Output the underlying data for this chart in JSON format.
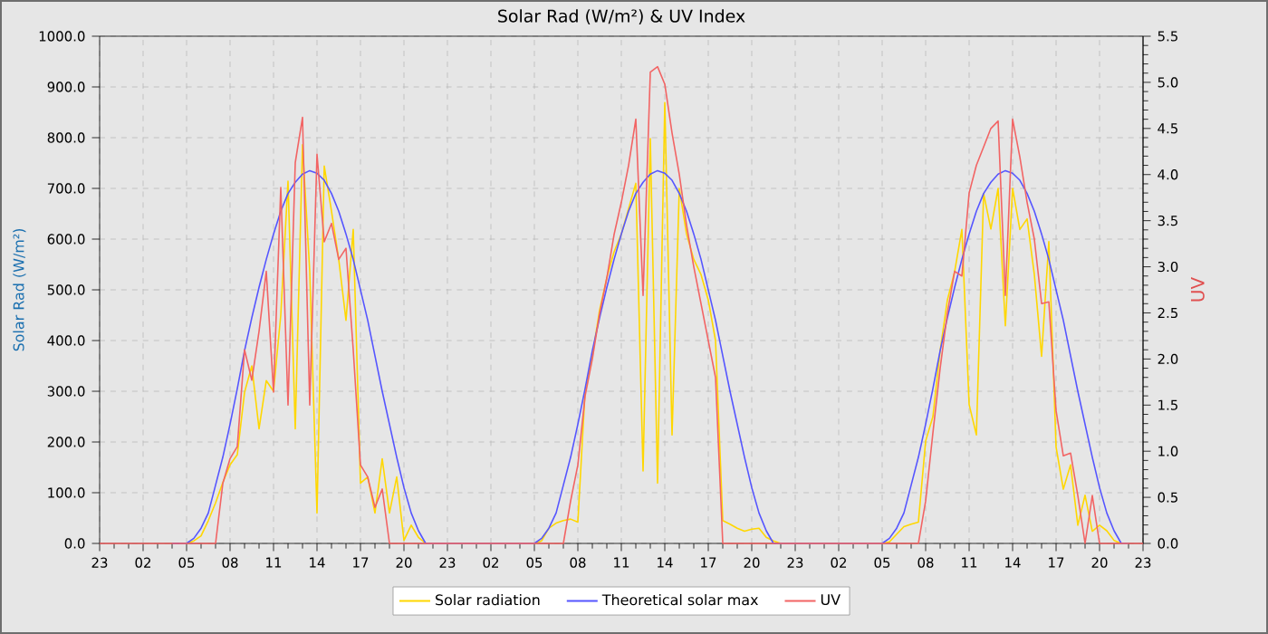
{
  "chart_data": {
    "type": "line",
    "title": "Solar Rad (W/m²) &  UV Index",
    "ylabel": "Solar Rad (W/m²)",
    "y2label": "UV",
    "categories": [
      "23",
      null,
      null,
      null,
      null,
      null,
      "02",
      null,
      null,
      null,
      null,
      null,
      "05",
      null,
      null,
      null,
      null,
      null,
      "08",
      null,
      null,
      null,
      null,
      null,
      "11",
      null,
      null,
      null,
      null,
      null,
      "14",
      null,
      null,
      null,
      null,
      null,
      "17",
      null,
      null,
      null,
      null,
      null,
      "20",
      null,
      null,
      null,
      null,
      null,
      "23",
      null,
      null,
      null,
      null,
      null,
      "02",
      null,
      null,
      null,
      null,
      null,
      "05",
      null,
      null,
      null,
      null,
      null,
      "08",
      null,
      null,
      null,
      null,
      null,
      "11",
      null,
      null,
      null,
      null,
      null,
      "14",
      null,
      null,
      null,
      null,
      null,
      "17",
      null,
      null,
      null,
      null,
      null,
      "20",
      null,
      null,
      null,
      null,
      null,
      "23",
      null,
      null,
      null,
      null,
      null,
      "02",
      null,
      null,
      null,
      null,
      null,
      "05",
      null,
      null,
      null,
      null,
      null,
      "08",
      null,
      null,
      null,
      null,
      null,
      "11",
      null,
      null,
      null,
      null,
      null,
      "14",
      null,
      null,
      null,
      null,
      null,
      "17",
      null,
      null,
      null,
      null,
      null,
      "20",
      null,
      null,
      null,
      null,
      null,
      "23"
    ],
    "ylim": [
      0,
      1000
    ],
    "yticks": [
      {
        "value": 0,
        "label": "0.0"
      },
      {
        "value": 100,
        "label": "100.0"
      },
      {
        "value": 200,
        "label": "200.0"
      },
      {
        "value": 300,
        "label": "300.0"
      },
      {
        "value": 400,
        "label": "400.0"
      },
      {
        "value": 500,
        "label": "500.0"
      },
      {
        "value": 600,
        "label": "600.0"
      },
      {
        "value": 700,
        "label": "700.0"
      },
      {
        "value": 800,
        "label": "800.0"
      },
      {
        "value": 900,
        "label": "900.0"
      },
      {
        "value": 1000,
        "label": "1000.0"
      }
    ],
    "y2lim": [
      0,
      5.5
    ],
    "y2ticks": [
      {
        "value": 0,
        "label": "0.0"
      },
      {
        "value": 0.5,
        "label": "0.5"
      },
      {
        "value": 1,
        "label": "1.0"
      },
      {
        "value": 1.5,
        "label": "1.5"
      },
      {
        "value": 2,
        "label": "2.0"
      },
      {
        "value": 2.5,
        "label": "2.5"
      },
      {
        "value": 3,
        "label": "3.0"
      },
      {
        "value": 3.5,
        "label": "3.5"
      },
      {
        "value": 4,
        "label": "4.0"
      },
      {
        "value": 4.5,
        "label": "4.5"
      },
      {
        "value": 5,
        "label": "5.0"
      },
      {
        "value": 5.5,
        "label": "5.5"
      }
    ],
    "grid": true,
    "legend": "bottom",
    "series": [
      {
        "name": "Solar radiation",
        "color": "#ffd700",
        "values": [
          null,
          null,
          null,
          null,
          null,
          null,
          null,
          null,
          null,
          null,
          null,
          0,
          0,
          5,
          15,
          45,
          80,
          120,
          155,
          175,
          298,
          350,
          226,
          321,
          300,
          450,
          714,
          226,
          786,
          536,
          60,
          744,
          655,
          560,
          440,
          619,
          119,
          131,
          60,
          167,
          60,
          131,
          6,
          36,
          12,
          0,
          0,
          0,
          0,
          0,
          0,
          0,
          0,
          0,
          0,
          0,
          0,
          0,
          0,
          0,
          0,
          5,
          30,
          40,
          45,
          48,
          42,
          300,
          370,
          460,
          524,
          575,
          610,
          660,
          710,
          143,
          798,
          119,
          869,
          214,
          700,
          610,
          560,
          530,
          480,
          400,
          45,
          38,
          30,
          24,
          28,
          30,
          12,
          5,
          0,
          0,
          0,
          0,
          0,
          0,
          0,
          0,
          0,
          0,
          0,
          0,
          0,
          0,
          0,
          3,
          18,
          33,
          38,
          42,
          202,
          250,
          380,
          480,
          536,
          619,
          274,
          214,
          690,
          620,
          700,
          429,
          700,
          619,
          640,
          530,
          369,
          595,
          190,
          107,
          155,
          36,
          95,
          24,
          36,
          25,
          6,
          0,
          0,
          null,
          null
        ]
      },
      {
        "name": "Theoretical solar max",
        "color": "#5555ff",
        "values": [
          null,
          null,
          null,
          null,
          null,
          null,
          null,
          null,
          null,
          null,
          0,
          0,
          0,
          10,
          30,
          60,
          115,
          170,
          235,
          305,
          380,
          445,
          505,
          560,
          610,
          655,
          690,
          712,
          728,
          735,
          730,
          716,
          690,
          655,
          610,
          560,
          500,
          440,
          370,
          300,
          235,
          170,
          110,
          60,
          25,
          0,
          0,
          0,
          0,
          0,
          0,
          0,
          0,
          0,
          0,
          0,
          0,
          0,
          0,
          0,
          0,
          10,
          30,
          60,
          115,
          170,
          235,
          305,
          380,
          445,
          505,
          560,
          610,
          655,
          690,
          712,
          728,
          735,
          730,
          716,
          690,
          655,
          610,
          560,
          500,
          440,
          370,
          300,
          235,
          170,
          110,
          60,
          25,
          0,
          0,
          0,
          0,
          0,
          0,
          0,
          0,
          0,
          0,
          0,
          0,
          0,
          0,
          0,
          0,
          10,
          30,
          60,
          115,
          170,
          235,
          305,
          380,
          445,
          505,
          560,
          610,
          655,
          690,
          712,
          728,
          735,
          730,
          716,
          690,
          655,
          610,
          560,
          500,
          440,
          370,
          300,
          235,
          170,
          110,
          60,
          25,
          0,
          0,
          null,
          null
        ]
      },
      {
        "name": "UV",
        "color": "#f26464",
        "axis": "y2",
        "values": [
          0,
          0,
          0,
          0,
          0,
          0,
          0,
          0,
          0,
          0,
          0,
          0,
          0,
          0,
          0,
          0,
          0,
          0.65,
          0.92,
          1.05,
          2.1,
          1.77,
          2.3,
          2.95,
          1.64,
          3.86,
          1.5,
          4.13,
          4.62,
          1.5,
          4.22,
          3.27,
          3.47,
          3.08,
          3.2,
          2.1,
          0.85,
          0.72,
          0.39,
          0.59,
          0,
          0,
          0,
          0,
          0,
          0,
          0,
          0,
          0,
          0,
          0,
          0,
          0,
          0,
          0,
          0,
          0,
          0,
          0,
          0,
          0,
          0,
          0,
          0,
          0,
          0.46,
          0.85,
          1.6,
          2.0,
          2.49,
          2.88,
          3.35,
          3.7,
          4.1,
          4.6,
          2.69,
          5.11,
          5.17,
          4.98,
          4.45,
          4.0,
          3.45,
          3.0,
          2.6,
          2.2,
          1.8,
          0,
          0,
          0,
          0,
          0,
          0,
          0,
          0,
          0,
          0,
          0,
          0,
          0,
          0,
          0,
          0,
          0,
          0,
          0,
          0,
          0,
          0,
          0,
          0,
          0,
          0,
          0,
          0,
          0.46,
          1.2,
          1.9,
          2.5,
          2.95,
          2.9,
          3.8,
          4.1,
          4.3,
          4.5,
          4.58,
          2.69,
          4.6,
          4.19,
          3.7,
          3.3,
          2.6,
          2.62,
          1.44,
          0.95,
          0.98,
          0.52,
          0,
          0.52,
          0,
          0,
          0,
          0,
          0,
          0,
          0
        ]
      }
    ]
  }
}
